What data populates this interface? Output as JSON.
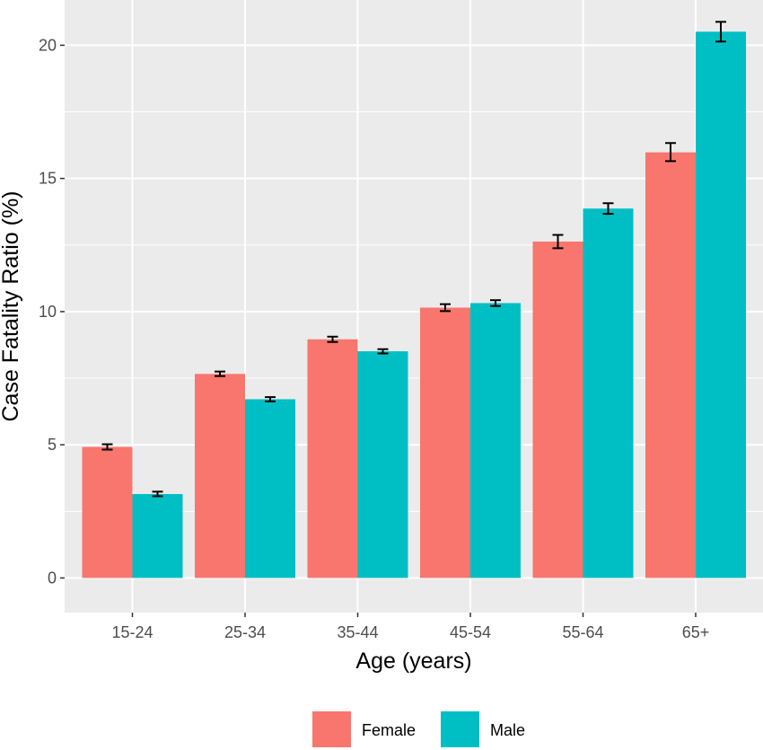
{
  "chart_data": {
    "type": "bar",
    "xlabel": "Age (years)",
    "ylabel": "Case Fatality Ratio (%)",
    "categories": [
      "15-24",
      "25-34",
      "35-44",
      "45-54",
      "55-64",
      "65+"
    ],
    "ylim": [
      -1.3,
      21.7
    ],
    "yticks": [
      "0",
      "5",
      "10",
      "15",
      "20"
    ],
    "grid": true,
    "legend_position": "bottom",
    "series": [
      {
        "name": "Female",
        "color": "#F8766D",
        "values": [
          4.92,
          7.66,
          8.96,
          10.15,
          12.63,
          15.98
        ],
        "error_low": [
          4.82,
          7.58,
          8.86,
          10.02,
          12.38,
          15.65
        ],
        "error_high": [
          5.02,
          7.75,
          9.06,
          10.28,
          12.88,
          16.33
        ]
      },
      {
        "name": "Male",
        "color": "#00BFC4",
        "values": [
          3.15,
          6.71,
          8.51,
          10.32,
          13.87,
          20.51
        ],
        "error_low": [
          3.07,
          6.63,
          8.43,
          10.21,
          13.67,
          20.14
        ],
        "error_high": [
          3.24,
          6.79,
          8.59,
          10.43,
          14.07,
          20.88
        ]
      }
    ]
  }
}
